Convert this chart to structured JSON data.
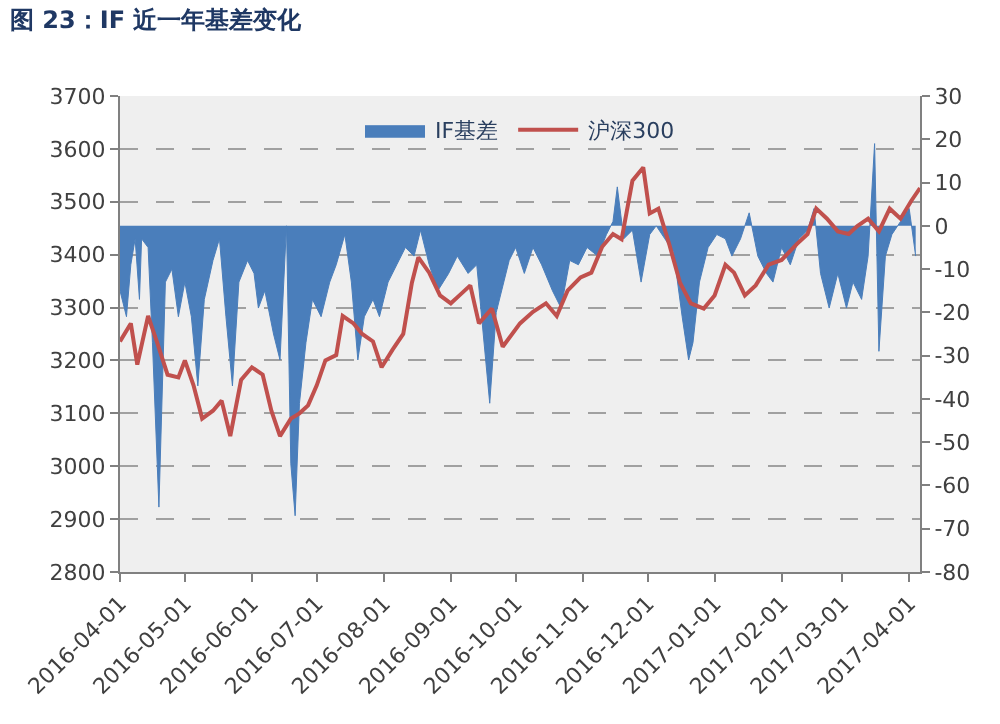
{
  "chart_data": {
    "type": "line",
    "title": "图 23：IF 近一年基差变化",
    "legend": "top",
    "grid": "y",
    "marker": "none",
    "line_style": "solid",
    "xlim": [
      "2016-04-01",
      "2017-04-06"
    ],
    "xticks": [
      {
        "value": "2016-04-01",
        "label": "2016-04-01"
      },
      {
        "value": "2016-05-01",
        "label": "2016-05-01"
      },
      {
        "value": "2016-06-01",
        "label": "2016-06-01"
      },
      {
        "value": "2016-07-01",
        "label": "2016-07-01"
      },
      {
        "value": "2016-08-01",
        "label": "2016-08-01"
      },
      {
        "value": "2016-09-01",
        "label": "2016-09-01"
      },
      {
        "value": "2016-10-01",
        "label": "2016-10-01"
      },
      {
        "value": "2016-11-01",
        "label": "2016-11-01"
      },
      {
        "value": "2016-12-01",
        "label": "2016-12-01"
      },
      {
        "value": "2017-01-01",
        "label": "2017-01-01"
      },
      {
        "value": "2017-02-01",
        "label": "2017-02-01"
      },
      {
        "value": "2017-03-01",
        "label": "2017-03-01"
      },
      {
        "value": "2017-04-01",
        "label": "2017-04-01"
      }
    ],
    "ylim": [
      2800,
      3700
    ],
    "yticks": [
      2800,
      2900,
      3000,
      3100,
      3200,
      3300,
      3400,
      3500,
      3600,
      3700
    ],
    "y2lim": [
      -80,
      30
    ],
    "y2ticks": [
      -80,
      -70,
      -60,
      -50,
      -40,
      -30,
      -20,
      -10,
      0,
      10,
      20,
      30
    ],
    "series": [
      {
        "name": "IF基差",
        "type": "area",
        "axis": "y2",
        "color": "#4a7ebb",
        "x": [
          "2016-04-01",
          "2016-04-04",
          "2016-04-06",
          "2016-04-08",
          "2016-04-10",
          "2016-04-11",
          "2016-04-14",
          "2016-04-16",
          "2016-04-19",
          "2016-04-22",
          "2016-04-25",
          "2016-04-28",
          "2016-05-01",
          "2016-05-04",
          "2016-05-07",
          "2016-05-10",
          "2016-05-14",
          "2016-05-17",
          "2016-05-20",
          "2016-05-23",
          "2016-05-26",
          "2016-05-30",
          "2016-06-02",
          "2016-06-04",
          "2016-06-07",
          "2016-06-11",
          "2016-06-14",
          "2016-06-17",
          "2016-06-19",
          "2016-06-21",
          "2016-06-23",
          "2016-06-26",
          "2016-06-29",
          "2016-07-03",
          "2016-07-07",
          "2016-07-10",
          "2016-07-14",
          "2016-07-17",
          "2016-07-20",
          "2016-07-23",
          "2016-07-27",
          "2016-07-30",
          "2016-08-03",
          "2016-08-07",
          "2016-08-11",
          "2016-08-15",
          "2016-08-18",
          "2016-08-22",
          "2016-08-26",
          "2016-08-31",
          "2016-09-04",
          "2016-09-09",
          "2016-09-13",
          "2016-09-19",
          "2016-09-22",
          "2016-09-28",
          "2016-10-01",
          "2016-10-05",
          "2016-10-09",
          "2016-10-13",
          "2016-10-18",
          "2016-10-22",
          "2016-10-26",
          "2016-10-30",
          "2016-11-03",
          "2016-11-08",
          "2016-11-12",
          "2016-11-15",
          "2016-11-17",
          "2016-11-20",
          "2016-11-24",
          "2016-11-28",
          "2016-12-02",
          "2016-12-05",
          "2016-12-09",
          "2016-12-13",
          "2016-12-17",
          "2016-12-20",
          "2016-12-22",
          "2016-12-25",
          "2016-12-29",
          "2017-01-02",
          "2017-01-06",
          "2017-01-09",
          "2017-01-13",
          "2017-01-17",
          "2017-01-21",
          "2017-01-25",
          "2017-01-28",
          "2017-02-01",
          "2017-02-05",
          "2017-02-09",
          "2017-02-13",
          "2017-02-16",
          "2017-02-19",
          "2017-02-23",
          "2017-02-27",
          "2017-03-03",
          "2017-03-06",
          "2017-03-10",
          "2017-03-13",
          "2017-03-16",
          "2017-03-18",
          "2017-03-21",
          "2017-03-24",
          "2017-03-28",
          "2017-04-01",
          "2017-04-04"
        ],
        "values": [
          -15,
          -21,
          -9,
          -3,
          -17,
          -3,
          -5,
          -27,
          -65,
          -13,
          -10,
          -21,
          -13,
          -21,
          -37,
          -17,
          -8,
          -3,
          -21,
          -37,
          -13,
          -8,
          -11,
          -19,
          -15,
          -25,
          -31,
          0,
          -55,
          -67,
          -41,
          -27,
          -17,
          -21,
          -13,
          -9,
          -2,
          -13,
          -31,
          -21,
          -17,
          -21,
          -13,
          -9,
          -5,
          -7,
          -1,
          -9,
          -15,
          -11,
          -7,
          -11,
          -9,
          -41,
          -20,
          -8,
          -5,
          -11,
          -5,
          -9,
          -15,
          -19,
          -8,
          -9,
          -5,
          -7,
          -2,
          1,
          9,
          -3,
          -1,
          -13,
          -2,
          0,
          -3,
          -6,
          -21,
          -31,
          -27,
          -13,
          -5,
          -2,
          -3,
          -7,
          -3,
          3,
          -7,
          -11,
          -13,
          -5,
          -9,
          -3,
          -1,
          4,
          -11,
          -19,
          -11,
          -19,
          -13,
          -17,
          -7,
          19,
          -29,
          -7,
          -2,
          1,
          4,
          -7
        ]
      },
      {
        "name": "沪深300",
        "color": "#c0504d",
        "x": [
          "2016-04-01",
          "2016-04-06",
          "2016-04-09",
          "2016-04-14",
          "2016-04-18",
          "2016-04-23",
          "2016-04-28",
          "2016-05-01",
          "2016-05-05",
          "2016-05-09",
          "2016-05-14",
          "2016-05-18",
          "2016-05-22",
          "2016-05-27",
          "2016-06-01",
          "2016-06-06",
          "2016-06-10",
          "2016-06-14",
          "2016-06-19",
          "2016-06-23",
          "2016-06-27",
          "2016-07-01",
          "2016-07-05",
          "2016-07-10",
          "2016-07-13",
          "2016-07-18",
          "2016-07-22",
          "2016-07-27",
          "2016-07-31",
          "2016-08-05",
          "2016-08-10",
          "2016-08-14",
          "2016-08-17",
          "2016-08-22",
          "2016-08-27",
          "2016-09-01",
          "2016-09-05",
          "2016-09-10",
          "2016-09-14",
          "2016-09-20",
          "2016-09-25",
          "2016-10-03",
          "2016-10-09",
          "2016-10-15",
          "2016-10-20",
          "2016-10-25",
          "2016-10-31",
          "2016-11-05",
          "2016-11-10",
          "2016-11-15",
          "2016-11-19",
          "2016-11-24",
          "2016-11-29",
          "2016-12-02",
          "2016-12-06",
          "2016-12-11",
          "2016-12-16",
          "2016-12-21",
          "2016-12-27",
          "2017-01-01",
          "2017-01-06",
          "2017-01-10",
          "2017-01-15",
          "2017-01-20",
          "2017-01-26",
          "2017-02-01",
          "2017-02-08",
          "2017-02-13",
          "2017-02-17",
          "2017-02-22",
          "2017-02-27",
          "2017-03-04",
          "2017-03-08",
          "2017-03-13",
          "2017-03-18",
          "2017-03-23",
          "2017-03-28",
          "2017-04-02",
          "2017-04-06"
        ],
        "values": [
          3236,
          3270,
          3192,
          3284,
          3236,
          3173,
          3168,
          3200,
          3153,
          3090,
          3105,
          3124,
          3057,
          3163,
          3187,
          3173,
          3105,
          3057,
          3090,
          3100,
          3115,
          3153,
          3200,
          3210,
          3284,
          3270,
          3250,
          3236,
          3187,
          3220,
          3250,
          3347,
          3395,
          3366,
          3323,
          3308,
          3323,
          3342,
          3270,
          3298,
          3226,
          3270,
          3292,
          3308,
          3284,
          3332,
          3357,
          3366,
          3415,
          3439,
          3429,
          3540,
          3565,
          3478,
          3487,
          3420,
          3347,
          3308,
          3298,
          3323,
          3381,
          3366,
          3323,
          3342,
          3381,
          3390,
          3420,
          3439,
          3487,
          3468,
          3444,
          3439,
          3454,
          3468,
          3444,
          3487,
          3468,
          3502,
          3526
        ]
      }
    ]
  }
}
